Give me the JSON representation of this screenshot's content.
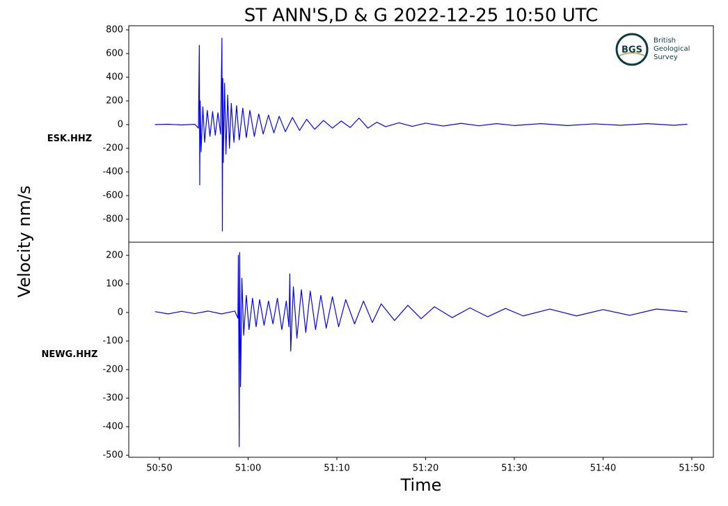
{
  "title": "ST ANN'S,D & G   2022-12-25 10:50 UTC",
  "ylabel": "Velocity nm/s",
  "xlabel": "Time",
  "logo": {
    "abbr": "BGS",
    "lines": [
      "British",
      "Geological",
      "Survey"
    ]
  },
  "chart_data": [
    {
      "type": "line",
      "ylabel": "ESK.HHZ",
      "color": "#0000ff",
      "xlim": [
        46.55,
        112.43
      ],
      "ylim": [
        -994,
        835
      ],
      "yticks": [
        -800,
        -600,
        -400,
        -200,
        0,
        200,
        400,
        600,
        800
      ],
      "x": [
        49.5,
        51,
        52.5,
        54,
        54.4,
        54.5,
        54.55,
        54.6,
        54.7,
        54.9,
        55.1,
        55.4,
        55.7,
        56.0,
        56.3,
        56.6,
        56.9,
        57.05,
        57.1,
        57.15,
        57.2,
        57.35,
        57.5,
        57.7,
        57.9,
        58.1,
        58.4,
        58.7,
        59.0,
        59.4,
        59.8,
        60.2,
        60.7,
        61.2,
        61.7,
        62.3,
        62.9,
        63.5,
        64.2,
        65.0,
        65.8,
        66.6,
        67.5,
        68.5,
        69.5,
        70.5,
        71.5,
        72.5,
        73.5,
        74.5,
        75.5,
        77,
        78.5,
        80,
        82,
        84,
        86,
        88,
        90,
        93,
        96,
        99,
        102,
        105,
        108,
        109.5
      ],
      "values": [
        0,
        3,
        -3,
        2,
        -30,
        670,
        -510,
        200,
        -230,
        150,
        -150,
        120,
        -100,
        110,
        -90,
        100,
        -80,
        730,
        -900,
        390,
        -320,
        350,
        -250,
        250,
        -200,
        180,
        -150,
        160,
        -130,
        140,
        -110,
        120,
        -100,
        90,
        -80,
        80,
        -70,
        70,
        -60,
        60,
        -50,
        45,
        -40,
        35,
        -30,
        30,
        -25,
        55,
        -30,
        20,
        -18,
        15,
        -15,
        12,
        -12,
        10,
        -10,
        8,
        -8,
        8,
        -8,
        6,
        -6,
        8,
        -6,
        3
      ]
    },
    {
      "type": "line",
      "ylabel": "NEWG.HHZ",
      "color": "#0000ff",
      "xlim": [
        46.55,
        112.43
      ],
      "ylim": [
        -507,
        246
      ],
      "yticks": [
        -500,
        -400,
        -300,
        -200,
        -100,
        0,
        100,
        200
      ],
      "xticks": [
        {
          "value": 50,
          "label": "50:50"
        },
        {
          "value": 60,
          "label": "51:00"
        },
        {
          "value": 70,
          "label": "51:10"
        },
        {
          "value": 80,
          "label": "51:20"
        },
        {
          "value": 90,
          "label": "51:30"
        },
        {
          "value": 100,
          "label": "51:40"
        },
        {
          "value": 110,
          "label": "51:50"
        }
      ],
      "x": [
        49.5,
        51,
        52.5,
        54,
        55.5,
        57,
        58.5,
        58.85,
        58.9,
        58.95,
        59.0,
        59.05,
        59.15,
        59.3,
        59.5,
        59.8,
        60.1,
        60.5,
        60.9,
        61.3,
        61.8,
        62.3,
        62.8,
        63.3,
        63.8,
        64.3,
        64.6,
        64.7,
        64.8,
        65.1,
        65.5,
        66.0,
        66.5,
        67.0,
        67.6,
        68.2,
        68.8,
        69.5,
        70.2,
        71,
        72,
        73,
        74,
        75,
        76.5,
        78,
        79.5,
        81,
        83,
        85,
        87,
        89,
        91,
        94,
        97,
        100,
        103,
        106,
        109.5
      ],
      "values": [
        3,
        -5,
        4,
        -4,
        5,
        -5,
        5,
        -20,
        200,
        -100,
        -470,
        210,
        -260,
        120,
        -80,
        60,
        -60,
        50,
        -50,
        45,
        -45,
        40,
        -40,
        50,
        -60,
        40,
        -50,
        135,
        -135,
        90,
        -90,
        80,
        -70,
        75,
        -60,
        60,
        -55,
        55,
        -50,
        45,
        -40,
        40,
        -35,
        30,
        -28,
        25,
        -22,
        20,
        -18,
        16,
        -15,
        14,
        -12,
        12,
        -12,
        10,
        -10,
        12,
        2
      ]
    }
  ]
}
